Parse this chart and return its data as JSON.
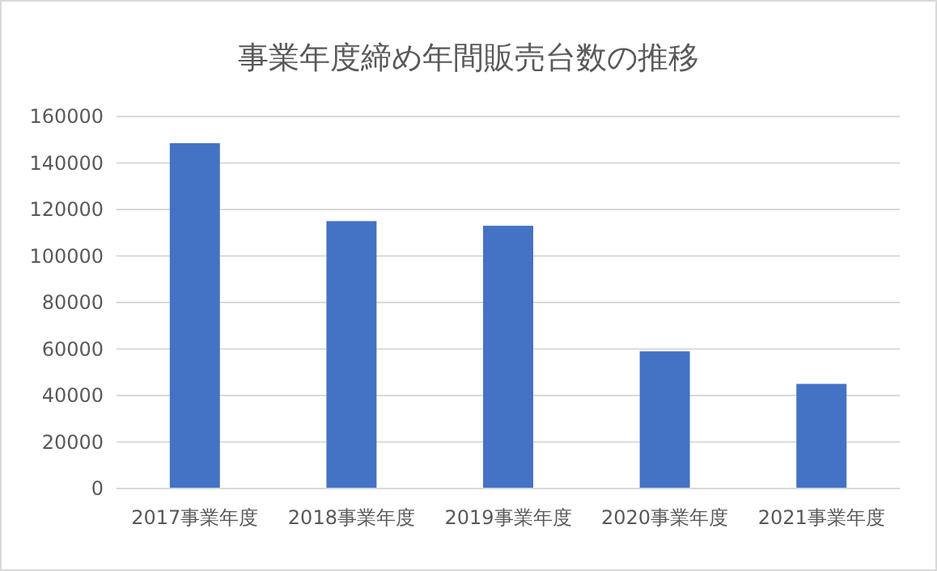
{
  "chart_data": {
    "type": "bar",
    "title": "事業年度締め年間販売台数の推移",
    "categories": [
      "2017事業年度",
      "2018事業年度",
      "2019事業年度",
      "2020事業年度",
      "2021事業年度"
    ],
    "values": [
      148500,
      115000,
      113000,
      59000,
      45000
    ],
    "color": "#4472c4",
    "ylim": [
      0,
      160000
    ],
    "yticks": [
      0,
      20000,
      40000,
      60000,
      80000,
      100000,
      120000,
      140000,
      160000
    ],
    "grid": "y"
  }
}
